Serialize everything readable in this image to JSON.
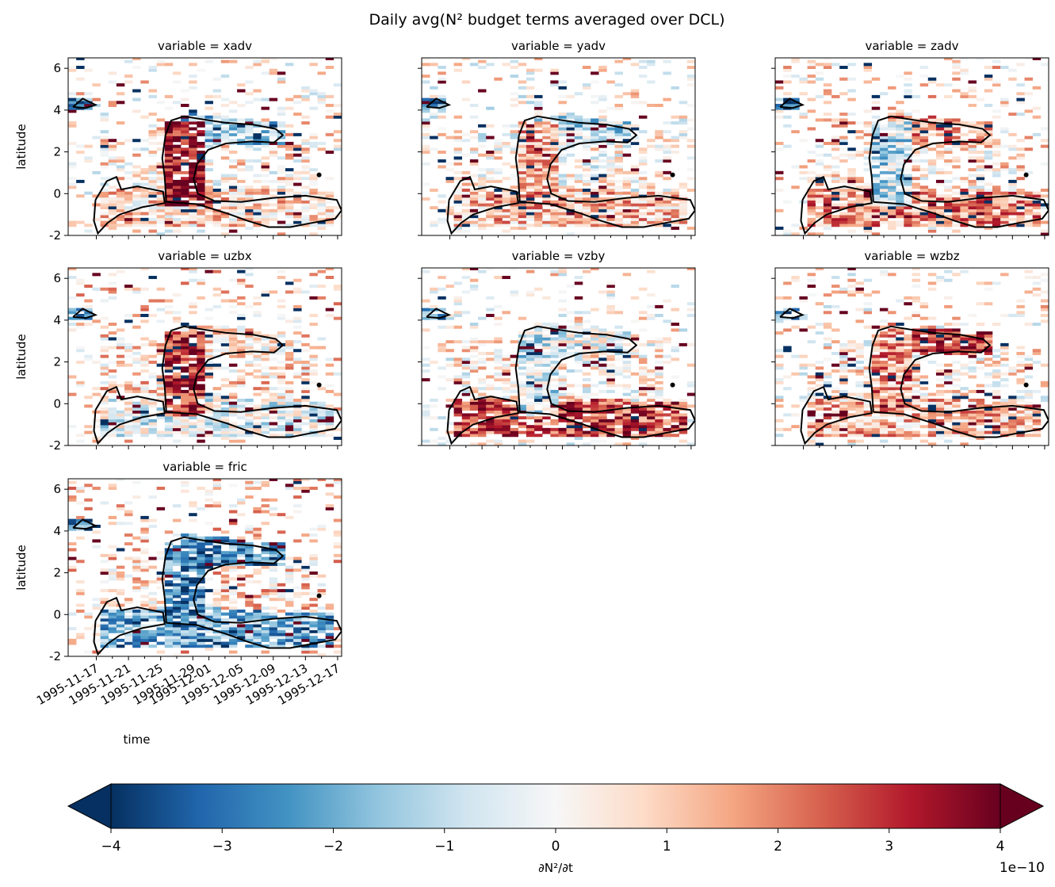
{
  "figure": {
    "title": "Daily avg(N² budget terms averaged over DCL)"
  },
  "chart_data": {
    "type": "heatmap",
    "layout": "facet grid, 3 columns, shared axes",
    "facet_label_prefix": "variable = ",
    "panels": [
      {
        "name": "xadv",
        "title": "variable = xadv",
        "seed": 11
      },
      {
        "name": "yadv",
        "title": "variable = yadv",
        "seed": 23
      },
      {
        "name": "zadv",
        "title": "variable = zadv",
        "seed": 37
      },
      {
        "name": "uzbx",
        "title": "variable = uzbx",
        "seed": 41
      },
      {
        "name": "vzby",
        "title": "variable = vzby",
        "seed": 53
      },
      {
        "name": "wzbz",
        "title": "variable = wzbz",
        "seed": 67
      },
      {
        "name": "fric",
        "title": "variable = fric",
        "seed": 79
      }
    ],
    "xlabel": "time",
    "ylabel": "latitude",
    "x_range": [
      "1995-11-14",
      "1995-12-18"
    ],
    "x_ticks": [
      "1995-11-17",
      "1995-11-21",
      "1995-11-25",
      "1995-11-29",
      "1995-12-01",
      "1995-12-05",
      "1995-12-09",
      "1995-12-13",
      "1995-12-17"
    ],
    "x_minor_ticks": [
      "1995-11-19",
      "1995-11-23",
      "1995-11-27",
      "1995-12-03",
      "1995-12-07",
      "1995-12-11",
      "1995-12-15"
    ],
    "ylim": [
      -2,
      6.5
    ],
    "y_ticks": [
      -2,
      0,
      2,
      4,
      6
    ],
    "colorbar": {
      "label": "∂N²/∂t",
      "colormap": "RdBu_r",
      "vmin": -4,
      "vmax": 4,
      "ticks": [
        -4,
        -3,
        -2,
        -1,
        0,
        1,
        2,
        3,
        4
      ],
      "tick_labels": [
        "−4",
        "−3",
        "−2",
        "−1",
        "0",
        "1",
        "2",
        "3",
        "4"
      ],
      "exponent": "1e−10",
      "extend": "both"
    },
    "contour_color": "#000000"
  }
}
